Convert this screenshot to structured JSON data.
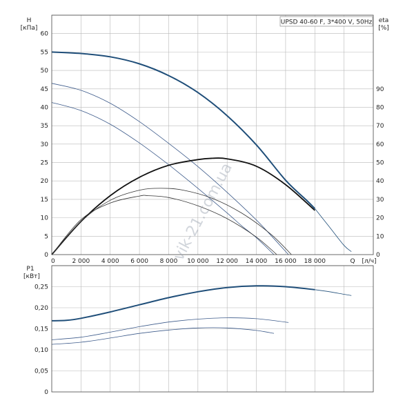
{
  "chart_data": [
    {
      "type": "line",
      "title": "UPSD 40-60 F, 3*400 V, 50Hz",
      "xlabel": "Q [л/ч]",
      "x_unit": "[л/ч]",
      "x_title": "Q",
      "xlim": [
        0,
        22000
      ],
      "x_ticks": [
        "0",
        "2 000",
        "4 000",
        "6 000",
        "8 000",
        "10 000",
        "12 000",
        "14 000",
        "16 000",
        "18 000"
      ],
      "x_tick_values": [
        0,
        2000,
        4000,
        6000,
        8000,
        10000,
        12000,
        14000,
        16000,
        18000
      ],
      "ylabel": "H",
      "y_unit": "[кПа]",
      "ylim": [
        0,
        65
      ],
      "y_ticks": [
        "0",
        "5",
        "10",
        "15",
        "20",
        "25",
        "30",
        "35",
        "40",
        "45",
        "50",
        "55",
        "60"
      ],
      "y_tick_values": [
        0,
        5,
        10,
        15,
        20,
        25,
        30,
        35,
        40,
        45,
        50,
        55,
        60
      ],
      "y2label": "eta",
      "y2_unit": "[%]",
      "y2lim": [
        0,
        130
      ],
      "y2_ticks": [
        "0",
        "10",
        "20",
        "30",
        "40",
        "50",
        "60",
        "70",
        "80",
        "90"
      ],
      "y2_tick_values": [
        0,
        10,
        20,
        30,
        40,
        50,
        60,
        70,
        80,
        90
      ],
      "grid": true,
      "series": [
        {
          "axis": "left",
          "color": "#1f4e79",
          "width": 2,
          "x": [
            0,
            2000,
            4000,
            6000,
            8000,
            10000,
            12000,
            14000,
            16000,
            17500,
            18000
          ],
          "values": [
            55,
            54.6,
            53.7,
            51.8,
            48.6,
            44,
            37.7,
            29.8,
            20.2,
            14.5,
            12.5
          ]
        },
        {
          "axis": "left",
          "color": "#1f4e79",
          "width": 0.8,
          "x": [
            18000,
            19000,
            20000,
            20500
          ],
          "values": [
            12.5,
            7.5,
            2.5,
            0.8
          ]
        },
        {
          "axis": "left",
          "color": "#3c5a8a",
          "width": 0.8,
          "x": [
            0,
            2000,
            4000,
            6000,
            8000,
            10000,
            12000,
            14000,
            15000,
            16200
          ],
          "values": [
            46.5,
            44.6,
            41.1,
            36.1,
            30.2,
            23.9,
            16.9,
            9.4,
            5.2,
            0
          ]
        },
        {
          "axis": "left",
          "color": "#3c5a8a",
          "width": 0.8,
          "x": [
            0,
            2000,
            4000,
            6000,
            8000,
            10000,
            12000,
            13000,
            14000,
            15200
          ],
          "values": [
            41.3,
            39.1,
            35.4,
            30.3,
            24.4,
            18,
            11.3,
            7.8,
            4.6,
            0
          ]
        },
        {
          "axis": "right",
          "color": "#111111",
          "width": 1.8,
          "x": [
            0,
            2000,
            4000,
            6000,
            8000,
            10000,
            11000,
            12000,
            14000,
            16000,
            18000
          ],
          "values": [
            0,
            18,
            32,
            42,
            48.5,
            51.6,
            52.3,
            52,
            48,
            38,
            24
          ]
        },
        {
          "axis": "right",
          "color": "#333333",
          "width": 0.8,
          "x": [
            0,
            2000,
            4000,
            6000,
            7500,
            9000,
            11000,
            13000,
            15000,
            16400
          ],
          "values": [
            0,
            18,
            29.5,
            35,
            36,
            35,
            30.5,
            22.5,
            11,
            0
          ]
        },
        {
          "axis": "right",
          "color": "#333333",
          "width": 0.8,
          "x": [
            0,
            2000,
            4000,
            6000,
            6600,
            8000,
            10000,
            12000,
            14000,
            15400
          ],
          "values": [
            0,
            19,
            28,
            31.8,
            32,
            31,
            26.5,
            19.5,
            9.5,
            0
          ]
        }
      ]
    },
    {
      "type": "line",
      "ylabel": "P1",
      "y_unit": "[кВт]",
      "ylim": [
        0,
        0.3
      ],
      "y_ticks": [
        "0",
        "0,05",
        "0,10",
        "0,15",
        "0,20",
        "0,25"
      ],
      "y_tick_values": [
        0,
        0.05,
        0.1,
        0.15,
        0.2,
        0.25
      ],
      "xlim": [
        0,
        22000
      ],
      "grid": true,
      "series": [
        {
          "color": "#1f4e79",
          "width": 2,
          "x": [
            0,
            1000,
            2000,
            4000,
            6000,
            8000,
            10000,
            12000,
            14000,
            16000,
            18000
          ],
          "values": [
            0.169,
            0.17,
            0.175,
            0.19,
            0.207,
            0.224,
            0.238,
            0.248,
            0.252,
            0.25,
            0.243
          ]
        },
        {
          "color": "#1f4e79",
          "width": 0.8,
          "x": [
            18000,
            19000,
            20000,
            20500
          ],
          "values": [
            0.243,
            0.238,
            0.232,
            0.229
          ]
        },
        {
          "color": "#3c5a8a",
          "width": 0.8,
          "x": [
            0,
            2000,
            4000,
            6000,
            8000,
            10000,
            12000,
            14000,
            16200
          ],
          "values": [
            0.124,
            0.13,
            0.142,
            0.155,
            0.166,
            0.173,
            0.176,
            0.174,
            0.165
          ]
        },
        {
          "color": "#3c5a8a",
          "width": 0.8,
          "x": [
            0,
            2000,
            4000,
            6000,
            8000,
            10000,
            12000,
            14000,
            15200
          ],
          "values": [
            0.113,
            0.118,
            0.128,
            0.139,
            0.147,
            0.152,
            0.152,
            0.146,
            0.139
          ]
        }
      ]
    }
  ],
  "watermark": "vik-21.com.ua"
}
